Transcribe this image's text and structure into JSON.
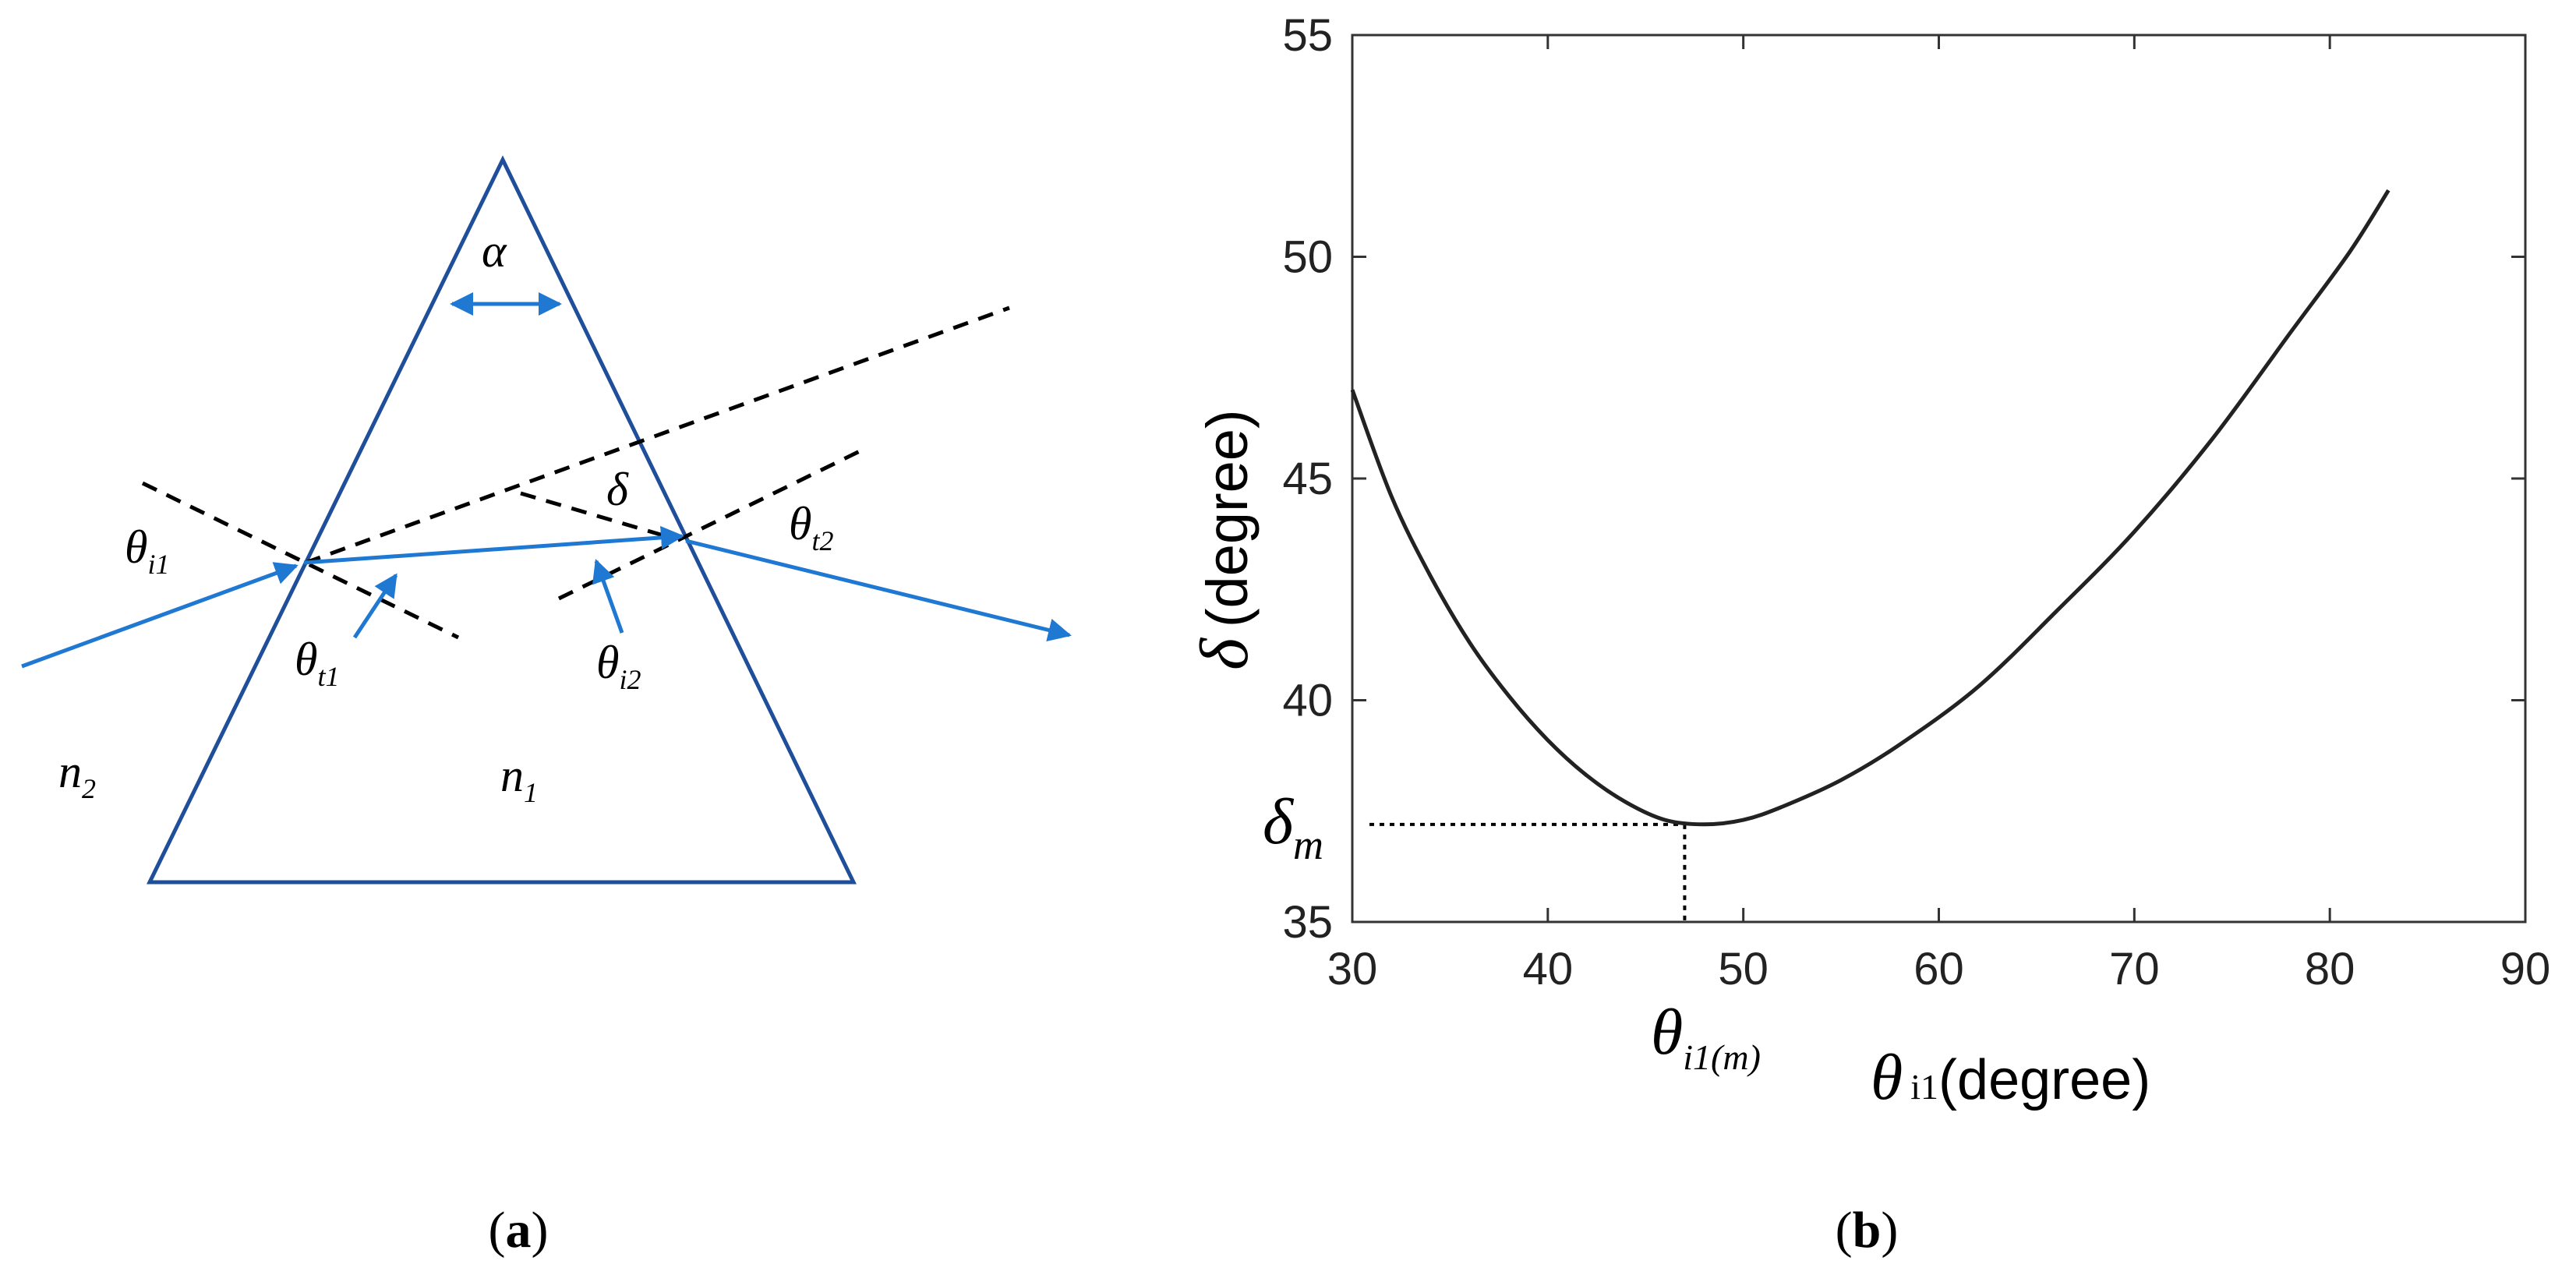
{
  "panel_a": {
    "caption_open": "(",
    "caption_letter": "a",
    "caption_close": ")",
    "labels": {
      "alpha": "α",
      "delta": "δ",
      "theta_i1": {
        "base": "θ",
        "sub": "i1"
      },
      "theta_t1": {
        "base": "θ",
        "sub": "t1"
      },
      "theta_i2": {
        "base": "θ",
        "sub": "i2"
      },
      "theta_t2": {
        "base": "θ",
        "sub": "t2"
      },
      "n1": {
        "base": "n",
        "sub": "1"
      },
      "n2": {
        "base": "n",
        "sub": "2"
      }
    },
    "colors": {
      "prism": "#1f4e9a",
      "ray": "#1f78d1",
      "normal": "#000000"
    }
  },
  "panel_b": {
    "caption_open": "(",
    "caption_letter": "b",
    "caption_close": ")",
    "annotations": {
      "delta_m": {
        "base": "δ",
        "sub": "m"
      },
      "theta_i1m": {
        "base": "θ",
        "sub": "i1(m)"
      }
    }
  },
  "chart_data": {
    "type": "line",
    "xlim": [
      30,
      90
    ],
    "ylim": [
      35,
      55
    ],
    "xticks": [
      "30",
      "40",
      "50",
      "60",
      "70",
      "80",
      "90"
    ],
    "yticks": [
      "35",
      "40",
      "45",
      "50",
      "55"
    ],
    "xlabel": {
      "symbol": "θ",
      "sub": "i1",
      "text": "(degree)"
    },
    "ylabel": {
      "symbol": "δ",
      "text": "(degree)"
    },
    "grid": false,
    "series": [
      {
        "x": [
          30,
          32,
          34,
          36,
          38,
          40,
          42,
          44,
          46,
          48,
          50,
          52,
          55,
          58,
          62,
          66,
          70,
          74,
          78,
          81,
          83
        ],
        "y": [
          47.0,
          44.6,
          42.8,
          41.3,
          40.1,
          39.1,
          38.3,
          37.7,
          37.3,
          37.2,
          37.3,
          37.6,
          38.2,
          39.0,
          40.3,
          42.0,
          43.8,
          45.9,
          48.3,
          50.1,
          51.5
        ]
      }
    ],
    "minimum": {
      "x": 47,
      "y": 37.2
    }
  }
}
